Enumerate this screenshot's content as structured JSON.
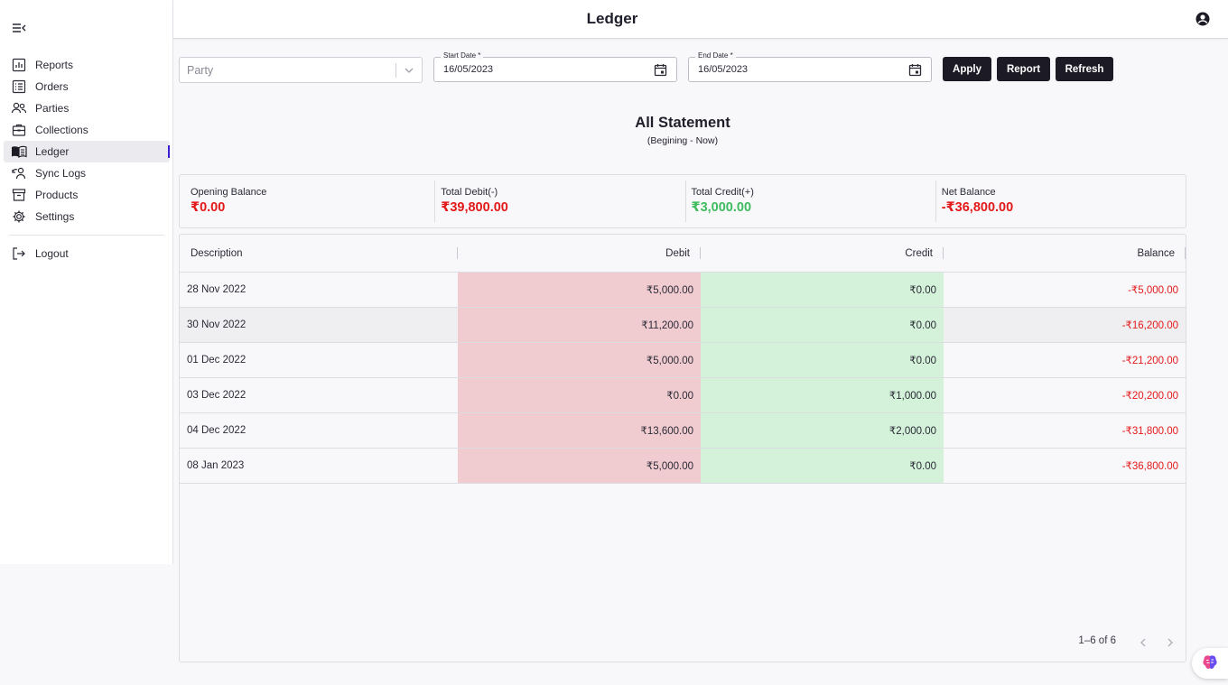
{
  "topbar": {
    "title": "Ledger"
  },
  "sidebar": {
    "items": [
      {
        "label": "Reports",
        "icon": "chart-icon"
      },
      {
        "label": "Orders",
        "icon": "list-icon"
      },
      {
        "label": "Parties",
        "icon": "users-icon"
      },
      {
        "label": "Collections",
        "icon": "briefcase-icon"
      },
      {
        "label": "Ledger",
        "icon": "book-icon",
        "active": true
      },
      {
        "label": "Sync Logs",
        "icon": "sync-icon"
      },
      {
        "label": "Products",
        "icon": "archive-icon"
      },
      {
        "label": "Settings",
        "icon": "gear-icon"
      }
    ],
    "logout": {
      "label": "Logout",
      "icon": "logout-icon"
    }
  },
  "filters": {
    "party": {
      "placeholder": "Party"
    },
    "start_date": {
      "label": "Start Date *",
      "value": "16/05/2023"
    },
    "end_date": {
      "label": "End Date *",
      "value": "16/05/2023"
    },
    "buttons": {
      "apply": "Apply",
      "report": "Report",
      "refresh": "Refresh"
    }
  },
  "statement": {
    "title": "All Statement",
    "subtitle": "(Begining - Now)"
  },
  "summary": {
    "opening": {
      "label": "Opening Balance",
      "value": "₹0.00"
    },
    "debit": {
      "label": "Total Debit(-)",
      "value": "₹39,800.00"
    },
    "credit": {
      "label": "Total Credit(+)",
      "value": "₹3,000.00"
    },
    "net": {
      "label": "Net Balance",
      "value": "-₹36,800.00"
    }
  },
  "table": {
    "columns": {
      "description": "Description",
      "debit": "Debit",
      "credit": "Credit",
      "balance": "Balance"
    },
    "rows": [
      {
        "description": "28 Nov 2022",
        "debit": "₹5,000.00",
        "credit": "₹0.00",
        "balance": "-₹5,000.00"
      },
      {
        "description": "30 Nov 2022",
        "debit": "₹11,200.00",
        "credit": "₹0.00",
        "balance": "-₹16,200.00"
      },
      {
        "description": "01 Dec 2022",
        "debit": "₹5,000.00",
        "credit": "₹0.00",
        "balance": "-₹21,200.00"
      },
      {
        "description": "03 Dec 2022",
        "debit": "₹0.00",
        "credit": "₹1,000.00",
        "balance": "-₹20,200.00"
      },
      {
        "description": "04 Dec 2022",
        "debit": "₹13,600.00",
        "credit": "₹2,000.00",
        "balance": "-₹31,800.00"
      },
      {
        "description": "08 Jan 2023",
        "debit": "₹5,000.00",
        "credit": "₹0.00",
        "balance": "-₹36,800.00"
      }
    ],
    "pagination": "1–6 of 6"
  },
  "colors": {
    "accent": "#3a1fd6",
    "button": "#1c1a25",
    "negative": "#e31919",
    "positive": "#3ebc5d",
    "debit_bg": "#f0ccd1",
    "credit_bg": "#d3f2d9"
  }
}
